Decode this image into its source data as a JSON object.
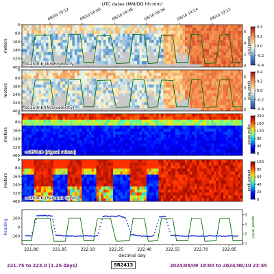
{
  "figure": {
    "top_axis_label": "UTC dates (MM/DD hh:mm)",
    "top_ticks": [
      "08/09 19:12",
      "08/10 00:00",
      "08/10 04:48",
      "08/10 09:36",
      "08/10 14:24",
      "08/10 19:12"
    ],
    "bottom_xlabel": "decimal day",
    "x_ticks": [
      "221.80",
      "221.95",
      "222.10",
      "222.25",
      "222.40",
      "222.55",
      "222.70",
      "222.85"
    ],
    "footer": {
      "left": "221.75 to 223.0 (1.25 days)",
      "center": "SR2413",
      "right": "2024/08/09 18:00 to 2024/08/10 23:55"
    },
    "colors": {
      "footer_text": "#7a1f7a",
      "speed_line": "#0a6b0a",
      "heading_line": "#1f2fd6",
      "no_data": "#c8c8c8"
    }
  },
  "chart_data": [
    {
      "type": "heatmap",
      "label": "os150nb (E/W velocity)",
      "ylabel": "meters",
      "y_ticks": [
        "0",
        "80",
        "160",
        "240",
        "320",
        "400"
      ],
      "colorbar_ticks": [
        "0.4",
        "0.2",
        "0.0",
        "-0.2",
        "-0.4"
      ],
      "colormap": "RdYlBu_r",
      "right_axis_ticks": [
        "6",
        "4",
        "2",
        "0"
      ],
      "right_label": "speed (m/s)"
    },
    {
      "type": "heatmap",
      "label": "os150nb (N/S velocity)",
      "ylabel": "meters",
      "y_ticks": [
        "0",
        "80",
        "160",
        "240",
        "320",
        "400"
      ],
      "colorbar_ticks": [
        "0.4",
        "0.2",
        "0.0",
        "-0.2",
        "-0.4"
      ],
      "colormap": "RdYlBu_r",
      "right_axis_ticks": [
        "6",
        "4",
        "2",
        "0"
      ],
      "right_label": "speed (m/s)"
    },
    {
      "type": "heatmap",
      "label": "os150nb (signal return)",
      "ylabel": "meters",
      "y_ticks": [
        "0",
        "80",
        "160",
        "240",
        "320",
        "400"
      ],
      "colorbar_ticks": [
        "200",
        "160",
        "120",
        "80",
        "40",
        "0"
      ],
      "colormap": "jet",
      "right_label": "signal return"
    },
    {
      "type": "heatmap",
      "label": "os150nb (Percent Good)",
      "ylabel": "meters",
      "y_ticks": [
        "0",
        "80",
        "160",
        "240",
        "320",
        "400"
      ],
      "colorbar_ticks": [
        "100",
        "80",
        "60",
        "40",
        "20",
        "0"
      ],
      "colormap": "jet",
      "right_label": "percent good"
    },
    {
      "type": "line",
      "ylabel": "heading",
      "y_ticks": [
        "100",
        "0",
        "-100"
      ],
      "right_axis_ticks": [
        "6",
        "4",
        "2",
        "0"
      ],
      "right_label": "speed (m/s)",
      "xlabel": "decimal day",
      "series": [
        {
          "name": "heading",
          "x": [
            221.77,
            221.8,
            221.83,
            221.86,
            221.88,
            221.91,
            221.93,
            221.96,
            221.99,
            222.01,
            222.04,
            222.07,
            222.1,
            222.12,
            222.15,
            222.18,
            222.21,
            222.24,
            222.27,
            222.3,
            222.33,
            222.36,
            222.39,
            222.42,
            222.45,
            222.48,
            222.51,
            222.54,
            222.57,
            222.6,
            222.63,
            222.66,
            222.69,
            222.72,
            222.75,
            222.78,
            222.81,
            222.84,
            222.87,
            222.9
          ],
          "values": [
            -95,
            -98,
            125,
            130,
            128,
            126,
            -90,
            -95,
            -100,
            -98,
            -102,
            -100,
            -98,
            -100,
            -99,
            120,
            122,
            118,
            125,
            100,
            -85,
            -95,
            -100,
            -105,
            -95,
            115,
            120,
            -90,
            -95,
            -100,
            -100,
            -98,
            -102,
            -100,
            -98,
            -100,
            -102,
            -100,
            -100,
            -102
          ]
        },
        {
          "name": "speed",
          "x": [
            221.75,
            221.8,
            221.82,
            221.9,
            221.92,
            221.98,
            222.0,
            222.06,
            222.08,
            222.13,
            222.15,
            222.22,
            222.25,
            222.32,
            222.34,
            222.4,
            222.42,
            222.47,
            222.49,
            222.55,
            222.57,
            222.63,
            222.65,
            222.7,
            222.72,
            222.78,
            222.8,
            222.85,
            222.87,
            222.92
          ],
          "values": [
            0.5,
            0.5,
            5.2,
            5.2,
            0.4,
            0.4,
            5.3,
            5.3,
            0.5,
            0.5,
            5.1,
            5.2,
            0.4,
            0.5,
            5.3,
            5.2,
            0.4,
            0.5,
            5.2,
            5.1,
            0.5,
            0.5,
            5.3,
            5.2,
            0.4,
            0.5,
            5.2,
            5.3,
            0.5,
            0.5
          ]
        }
      ]
    }
  ]
}
